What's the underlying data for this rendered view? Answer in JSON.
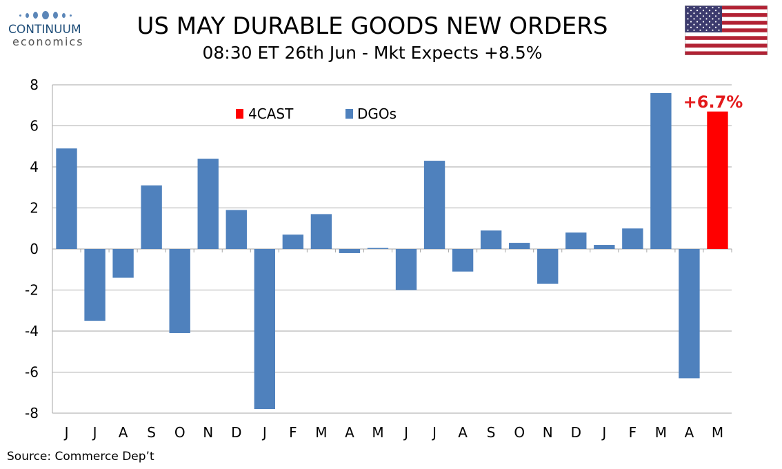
{
  "header": {
    "logo_name": "CONTINUUM",
    "logo_sub": "economics",
    "title": "US MAY DURABLE GOODS NEW ORDERS",
    "subtitle": "08:30 ET 26th Jun - Mkt Expects +8.5%"
  },
  "flag_icon": "us-flag-icon",
  "footer": {
    "source": "Source: Commerce Dep’t"
  },
  "colors": {
    "dgos": "#4f81bd",
    "forecast": "#ff0000",
    "forecast_label": "#e31a1c",
    "grid": "#a6a6a6"
  },
  "chart_data": {
    "type": "bar",
    "categories": [
      "J",
      "J",
      "A",
      "S",
      "O",
      "N",
      "D",
      "J",
      "F",
      "M",
      "A",
      "M",
      "J",
      "J",
      "A",
      "S",
      "O",
      "N",
      "D",
      "J",
      "F",
      "M",
      "A",
      "M"
    ],
    "series": [
      {
        "name": "DGOs",
        "values": [
          4.9,
          -3.5,
          -1.4,
          3.1,
          -4.1,
          4.4,
          1.9,
          -7.8,
          0.7,
          1.7,
          -0.2,
          0.05,
          -2.0,
          4.3,
          -1.1,
          0.9,
          0.3,
          -1.7,
          0.8,
          0.2,
          1.0,
          7.6,
          -6.3,
          null
        ]
      },
      {
        "name": "4CAST",
        "values": [
          null,
          null,
          null,
          null,
          null,
          null,
          null,
          null,
          null,
          null,
          null,
          null,
          null,
          null,
          null,
          null,
          null,
          null,
          null,
          null,
          null,
          null,
          null,
          6.7
        ]
      }
    ],
    "annotation": "+6.7%",
    "yticks": [
      "8",
      "6",
      "4",
      "2",
      "0",
      "-2",
      "-4",
      "-6",
      "-8"
    ],
    "ylim": [
      -8,
      8
    ],
    "grid": true,
    "legend_position": "top-center"
  }
}
